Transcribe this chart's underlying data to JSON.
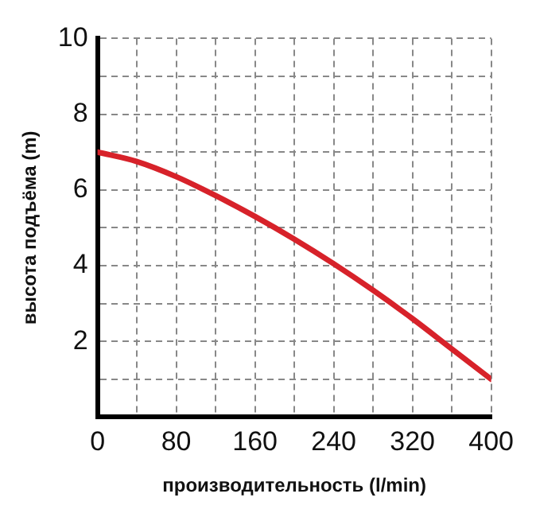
{
  "chart_data": {
    "type": "line",
    "xlabel": "производительность (l/min)",
    "ylabel": "высота подъёма (m)",
    "x": [
      0,
      40,
      80,
      120,
      160,
      200,
      240,
      280,
      320,
      360,
      400
    ],
    "series": [
      {
        "color": "#d7222a",
        "values": [
          7,
          6.75,
          6.35,
          5.85,
          5.3,
          4.7,
          4.05,
          3.35,
          2.6,
          1.8,
          1.0
        ]
      }
    ],
    "xlim": [
      0,
      400
    ],
    "ylim": [
      0,
      10
    ],
    "xticks": [
      0,
      {
        "value": 40,
        "label": null
      },
      80,
      {
        "value": 120,
        "label": null
      },
      160,
      {
        "value": 200,
        "label": null
      },
      240,
      {
        "value": 280,
        "label": null
      },
      320,
      {
        "value": 360,
        "label": null
      },
      400
    ],
    "yticks": [
      {
        "value": 0,
        "label": null
      },
      {
        "value": 1,
        "label": null
      },
      2,
      {
        "value": 3,
        "label": null
      },
      4,
      {
        "value": 5,
        "label": null
      },
      6,
      {
        "value": 7,
        "label": null
      },
      8,
      {
        "value": 9,
        "label": null
      },
      10
    ],
    "grid": true,
    "legend": false,
    "marker": "none",
    "line_style": "solid"
  }
}
